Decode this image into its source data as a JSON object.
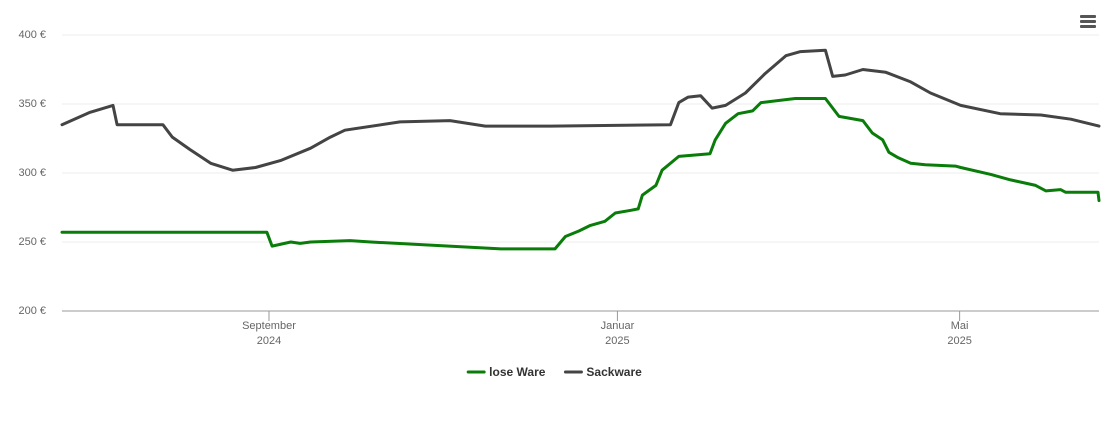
{
  "chart_data": {
    "type": "line",
    "xlim": [
      2024.466,
      2025.463
    ],
    "xticks": [
      {
        "value": 2024.665,
        "label": "September\n2024"
      },
      {
        "value": 2025.0,
        "label": "Januar\n2025"
      },
      {
        "value": 2025.329,
        "label": "Mai\n2025"
      }
    ],
    "ylim": [
      200,
      400
    ],
    "yticks": [
      {
        "value": 200,
        "label": "200 €"
      },
      {
        "value": 250,
        "label": "250 €"
      },
      {
        "value": 300,
        "label": "300 €"
      },
      {
        "value": 350,
        "label": "350 €"
      },
      {
        "value": 400,
        "label": "400 €"
      }
    ],
    "grid": true,
    "legend": "bottom",
    "series": [
      {
        "name": "lose Ware",
        "color": "#0a7c0a",
        "x": [
          2024.466,
          2024.663,
          2024.668,
          2024.686,
          2024.695,
          2024.705,
          2024.743,
          2024.763,
          2024.888,
          2024.94,
          2024.95,
          2024.963,
          2024.974,
          2024.988,
          2024.998,
          2025.013,
          2025.02,
          2025.024,
          2025.037,
          2025.043,
          2025.059,
          2025.089,
          2025.094,
          2025.104,
          2025.116,
          2025.13,
          2025.138,
          2025.171,
          2025.2,
          2025.213,
          2025.236,
          2025.245,
          2025.255,
          2025.261,
          2025.27,
          2025.282,
          2025.296,
          2025.325,
          2025.33,
          2025.359,
          2025.378,
          2025.402,
          2025.412,
          2025.426,
          2025.431,
          2025.462,
          2025.463
        ],
        "values": [
          257,
          257,
          247,
          250,
          249,
          250,
          251,
          250,
          245,
          245,
          254,
          258,
          262,
          265,
          271,
          273,
          274,
          284,
          291,
          302,
          312,
          314,
          324,
          336,
          343,
          345,
          351,
          354,
          354,
          341,
          338,
          329,
          324,
          315,
          311,
          307,
          306,
          305,
          304,
          299,
          295,
          291,
          287,
          288,
          286,
          286,
          280
        ]
      },
      {
        "name": "Sackware",
        "color": "#444444",
        "x": [
          2024.466,
          2024.493,
          2024.515,
          2024.519,
          2024.563,
          2024.572,
          2024.589,
          2024.609,
          2024.63,
          2024.652,
          2024.676,
          2024.705,
          2024.724,
          2024.738,
          2024.791,
          2024.839,
          2024.873,
          2024.936,
          2025.051,
          2025.059,
          2025.068,
          2025.08,
          2025.091,
          2025.104,
          2025.123,
          2025.142,
          2025.162,
          2025.176,
          2025.2,
          2025.207,
          2025.219,
          2025.236,
          2025.258,
          2025.282,
          2025.301,
          2025.33,
          2025.368,
          2025.407,
          2025.436,
          2025.463
        ],
        "values": [
          335,
          344,
          349,
          335,
          335,
          326,
          317,
          307,
          302,
          304,
          309,
          318,
          326,
          331,
          337,
          338,
          334,
          334,
          335,
          351,
          355,
          356,
          347,
          349,
          358,
          372,
          385,
          388,
          389,
          370,
          371,
          375,
          373,
          366,
          358,
          349,
          343,
          342,
          339,
          334
        ]
      }
    ]
  }
}
